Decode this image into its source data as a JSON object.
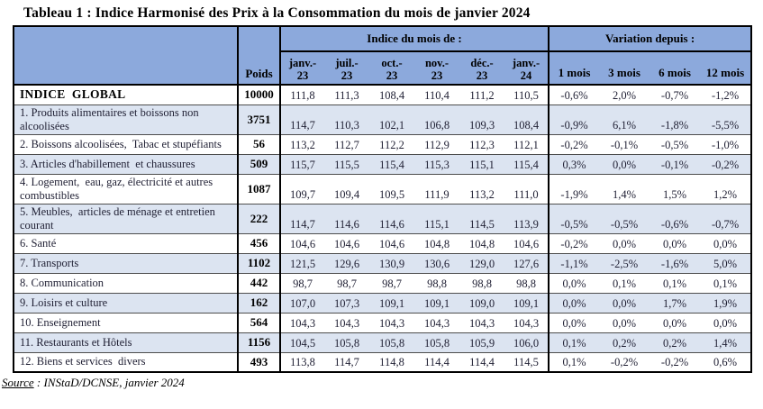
{
  "title": "Tableau 1 : Indice Harmonisé des Prix à la Consommation du mois de janvier 2024",
  "source": {
    "label": "Source",
    "rest": " : INStaD/DCNSE, janvier 2024"
  },
  "colors": {
    "header_bg": "#8CA9DC",
    "row_alt_bg": "#DCE4F1",
    "grid_line": "#4d4d4d",
    "border": "#000000",
    "text": "#1F1F33"
  },
  "table": {
    "poids_header": "Poids",
    "indices_group_header": "Indice du mois de :",
    "variation_group_header": "Variation depuis :",
    "month_headers": [
      [
        "janv.-",
        "23"
      ],
      [
        "juil.-",
        "23"
      ],
      [
        "oct.-",
        "23"
      ],
      [
        "nov.-",
        "23"
      ],
      [
        "déc.-",
        "23"
      ],
      [
        "janv.-",
        "24"
      ]
    ],
    "variation_headers": [
      "1 mois",
      "3 mois",
      "6 mois",
      "12 mois"
    ],
    "rows": [
      {
        "label": "INDICE  GLOBAL",
        "poids": "10000",
        "bold": true,
        "indices": [
          "111,8",
          "111,3",
          "108,4",
          "110,4",
          "111,2",
          "110,5"
        ],
        "variations": [
          "-0,6%",
          "2,0%",
          "-0,7%",
          "-1,2%"
        ]
      },
      {
        "label": "1. Produits alimentaires et boissons non alcoolisées",
        "poids": "3751",
        "indices": [
          "114,7",
          "110,3",
          "102,1",
          "106,8",
          "109,3",
          "108,4"
        ],
        "variations": [
          "-0,9%",
          "6,1%",
          "-1,8%",
          "-5,5%"
        ]
      },
      {
        "label": "2. Boissons alcoolisées,  Tabac et stupéfiants",
        "poids": "56",
        "indices": [
          "113,2",
          "112,7",
          "112,2",
          "112,9",
          "112,3",
          "112,1"
        ],
        "variations": [
          "-0,2%",
          "-0,1%",
          "-0,5%",
          "-1,0%"
        ]
      },
      {
        "label": "3. Articles d'habillement  et chaussures",
        "poids": "509",
        "indices": [
          "115,7",
          "115,5",
          "115,4",
          "115,3",
          "115,1",
          "115,4"
        ],
        "variations": [
          "0,3%",
          "0,0%",
          "-0,1%",
          "-0,2%"
        ]
      },
      {
        "label": "4. Logement,  eau, gaz, électricité et autres combustibles",
        "poids": "1087",
        "indices": [
          "109,7",
          "109,4",
          "109,5",
          "111,9",
          "113,2",
          "111,0"
        ],
        "variations": [
          "-1,9%",
          "1,4%",
          "1,5%",
          "1,2%"
        ]
      },
      {
        "label": "5. Meubles,  articles de ménage et entretien courant",
        "poids": "222",
        "indices": [
          "114,7",
          "114,6",
          "114,6",
          "115,1",
          "114,5",
          "113,9"
        ],
        "variations": [
          "-0,5%",
          "-0,5%",
          "-0,6%",
          "-0,7%"
        ]
      },
      {
        "label": "6. Santé",
        "poids": "456",
        "indices": [
          "104,6",
          "104,6",
          "104,6",
          "104,8",
          "104,8",
          "104,6"
        ],
        "variations": [
          "-0,2%",
          "0,0%",
          "0,0%",
          "0,0%"
        ]
      },
      {
        "label": "7. Transports",
        "poids": "1102",
        "indices": [
          "121,5",
          "129,6",
          "130,9",
          "130,6",
          "129,0",
          "127,6"
        ],
        "variations": [
          "-1,1%",
          "-2,5%",
          "-1,6%",
          "5,0%"
        ]
      },
      {
        "label": "8. Communication",
        "poids": "442",
        "indices": [
          "98,7",
          "98,7",
          "98,7",
          "98,8",
          "98,8",
          "98,8"
        ],
        "variations": [
          "0,0%",
          "0,1%",
          "0,1%",
          "0,1%"
        ]
      },
      {
        "label": "9. Loisirs et culture",
        "poids": "162",
        "indices": [
          "107,0",
          "107,3",
          "109,1",
          "109,1",
          "109,0",
          "109,1"
        ],
        "variations": [
          "0,0%",
          "0,0%",
          "1,7%",
          "1,9%"
        ]
      },
      {
        "label": "10. Enseignement",
        "poids": "564",
        "indices": [
          "104,3",
          "104,3",
          "104,3",
          "104,3",
          "104,3",
          "104,3"
        ],
        "variations": [
          "0,0%",
          "0,0%",
          "0,0%",
          "0,0%"
        ]
      },
      {
        "label": "11. Restaurants et Hôtels",
        "poids": "1156",
        "indices": [
          "104,5",
          "105,8",
          "105,8",
          "105,8",
          "105,9",
          "106,0"
        ],
        "variations": [
          "0,1%",
          "0,2%",
          "0,2%",
          "1,4%"
        ]
      },
      {
        "label": "12. Biens et services  divers",
        "poids": "493",
        "indices": [
          "113,8",
          "114,7",
          "114,8",
          "114,4",
          "114,4",
          "114,5"
        ],
        "variations": [
          "0,1%",
          "-0,2%",
          "-0,2%",
          "0,6%"
        ]
      }
    ]
  }
}
